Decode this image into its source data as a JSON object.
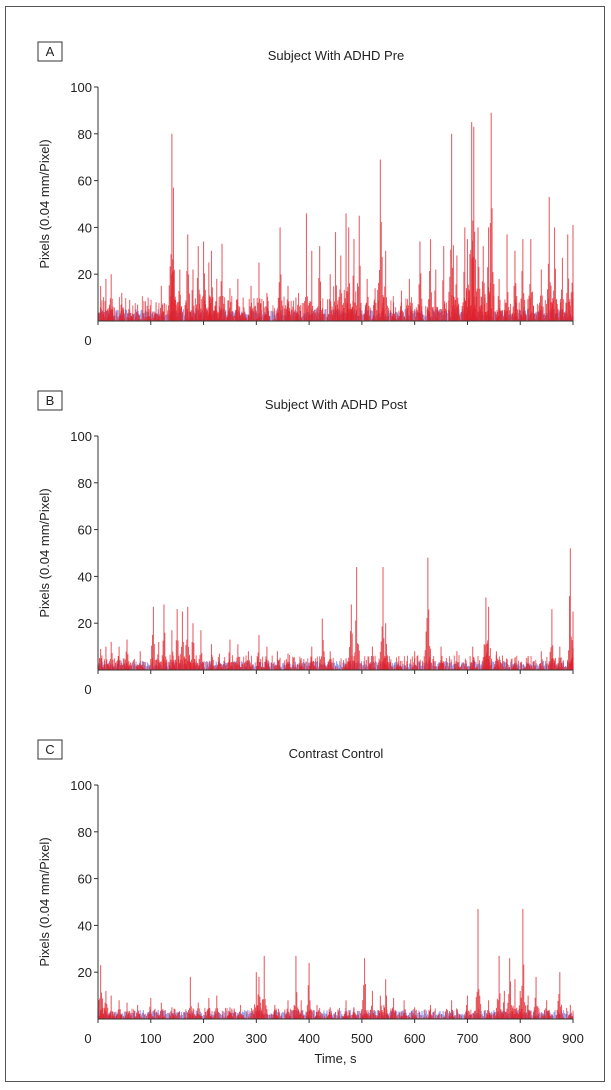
{
  "colors": {
    "subject": "#e0212b",
    "control_baseline": "#8a93e6",
    "axis": "#333333"
  },
  "shared": {
    "ylabel": "Pixels (0.04 mm/Pixel)",
    "xlabel": "Time, s",
    "x_ticks": [
      0,
      100,
      200,
      300,
      400,
      500,
      600,
      700,
      800,
      900
    ],
    "y_ticks": [
      0,
      20,
      40,
      60,
      80,
      100
    ]
  },
  "chart_data": [
    {
      "type": "area",
      "panel": "A",
      "title": "Subject With ADHD Pre",
      "xlabel": "",
      "ylabel": "Pixels (0.04 mm/Pixel)",
      "xlim": [
        0,
        900
      ],
      "ylim": [
        0,
        100
      ],
      "show_x_tick_labels": false,
      "baseline_level": 4,
      "noise_level": 7,
      "peaks": [
        [
          5,
          15
        ],
        [
          15,
          18
        ],
        [
          25,
          20
        ],
        [
          45,
          12
        ],
        [
          60,
          9
        ],
        [
          75,
          7
        ],
        [
          95,
          10
        ],
        [
          110,
          8
        ],
        [
          120,
          15
        ],
        [
          140,
          80
        ],
        [
          143,
          57
        ],
        [
          155,
          22
        ],
        [
          170,
          37
        ],
        [
          180,
          22
        ],
        [
          190,
          32
        ],
        [
          200,
          34
        ],
        [
          210,
          25
        ],
        [
          215,
          30
        ],
        [
          225,
          18
        ],
        [
          235,
          33
        ],
        [
          250,
          14
        ],
        [
          265,
          18
        ],
        [
          275,
          10
        ],
        [
          290,
          15
        ],
        [
          305,
          25
        ],
        [
          320,
          12
        ],
        [
          345,
          40
        ],
        [
          360,
          15
        ],
        [
          375,
          10
        ],
        [
          380,
          12
        ],
        [
          395,
          46
        ],
        [
          405,
          30
        ],
        [
          420,
          32
        ],
        [
          440,
          20
        ],
        [
          450,
          38
        ],
        [
          460,
          28
        ],
        [
          470,
          46
        ],
        [
          475,
          40
        ],
        [
          485,
          35
        ],
        [
          495,
          45
        ],
        [
          510,
          18
        ],
        [
          525,
          14
        ],
        [
          535,
          69
        ],
        [
          545,
          30
        ],
        [
          560,
          8
        ],
        [
          575,
          13
        ],
        [
          590,
          18
        ],
        [
          610,
          34
        ],
        [
          630,
          35
        ],
        [
          640,
          22
        ],
        [
          655,
          32
        ],
        [
          670,
          80
        ],
        [
          680,
          28
        ],
        [
          695,
          40
        ],
        [
          700,
          35
        ],
        [
          708,
          85
        ],
        [
          712,
          83
        ],
        [
          720,
          40
        ],
        [
          730,
          32
        ],
        [
          740,
          40
        ],
        [
          745,
          89
        ],
        [
          760,
          18
        ],
        [
          775,
          37
        ],
        [
          790,
          30
        ],
        [
          805,
          35
        ],
        [
          820,
          35
        ],
        [
          840,
          22
        ],
        [
          855,
          53
        ],
        [
          865,
          40
        ],
        [
          880,
          27
        ],
        [
          890,
          37
        ],
        [
          900,
          41
        ]
      ]
    },
    {
      "type": "area",
      "panel": "B",
      "title": "Subject With ADHD Post",
      "xlabel": "",
      "ylabel": "Pixels (0.04 mm/Pixel)",
      "xlim": [
        0,
        900
      ],
      "ylim": [
        0,
        100
      ],
      "show_x_tick_labels": false,
      "baseline_level": 3,
      "noise_level": 4,
      "peaks": [
        [
          5,
          9
        ],
        [
          15,
          10
        ],
        [
          25,
          12
        ],
        [
          40,
          10
        ],
        [
          55,
          13
        ],
        [
          80,
          8
        ],
        [
          105,
          27
        ],
        [
          115,
          12
        ],
        [
          125,
          28
        ],
        [
          140,
          17
        ],
        [
          150,
          26
        ],
        [
          160,
          25
        ],
        [
          170,
          27
        ],
        [
          180,
          20
        ],
        [
          195,
          17
        ],
        [
          215,
          11
        ],
        [
          230,
          7
        ],
        [
          250,
          13
        ],
        [
          265,
          11
        ],
        [
          285,
          8
        ],
        [
          305,
          15
        ],
        [
          320,
          10
        ],
        [
          340,
          8
        ],
        [
          360,
          7
        ],
        [
          385,
          5
        ],
        [
          405,
          10
        ],
        [
          425,
          22
        ],
        [
          440,
          8
        ],
        [
          470,
          5
        ],
        [
          480,
          28
        ],
        [
          490,
          44
        ],
        [
          520,
          10
        ],
        [
          540,
          44
        ],
        [
          545,
          20
        ],
        [
          570,
          6
        ],
        [
          600,
          8
        ],
        [
          625,
          48
        ],
        [
          650,
          10
        ],
        [
          680,
          8
        ],
        [
          710,
          10
        ],
        [
          735,
          31
        ],
        [
          740,
          27
        ],
        [
          755,
          8
        ],
        [
          790,
          5
        ],
        [
          815,
          6
        ],
        [
          840,
          8
        ],
        [
          860,
          26
        ],
        [
          875,
          10
        ],
        [
          895,
          52
        ],
        [
          900,
          25
        ]
      ]
    },
    {
      "type": "area",
      "panel": "C",
      "title": "Contrast Control",
      "xlabel": "Time, s",
      "ylabel": "Pixels (0.04 mm/Pixel)",
      "xlim": [
        0,
        900
      ],
      "ylim": [
        0,
        100
      ],
      "show_x_tick_labels": true,
      "baseline_level": 3,
      "noise_level": 3,
      "peaks": [
        [
          5,
          23
        ],
        [
          15,
          12
        ],
        [
          25,
          10
        ],
        [
          40,
          8
        ],
        [
          55,
          7
        ],
        [
          75,
          6
        ],
        [
          100,
          9
        ],
        [
          120,
          7
        ],
        [
          140,
          5
        ],
        [
          175,
          18
        ],
        [
          190,
          7
        ],
        [
          210,
          9
        ],
        [
          225,
          10
        ],
        [
          250,
          5
        ],
        [
          270,
          6
        ],
        [
          300,
          20
        ],
        [
          305,
          18
        ],
        [
          315,
          27
        ],
        [
          335,
          6
        ],
        [
          360,
          8
        ],
        [
          375,
          27
        ],
        [
          385,
          8
        ],
        [
          400,
          24
        ],
        [
          415,
          6
        ],
        [
          440,
          5
        ],
        [
          470,
          8
        ],
        [
          485,
          5
        ],
        [
          505,
          26
        ],
        [
          520,
          12
        ],
        [
          535,
          10
        ],
        [
          545,
          17
        ],
        [
          560,
          9
        ],
        [
          580,
          8
        ],
        [
          600,
          5
        ],
        [
          630,
          6
        ],
        [
          670,
          8
        ],
        [
          700,
          10
        ],
        [
          720,
          47
        ],
        [
          740,
          8
        ],
        [
          760,
          27
        ],
        [
          770,
          12
        ],
        [
          780,
          26
        ],
        [
          790,
          17
        ],
        [
          800,
          12
        ],
        [
          805,
          47
        ],
        [
          815,
          10
        ],
        [
          830,
          18
        ],
        [
          850,
          8
        ],
        [
          875,
          20
        ],
        [
          895,
          6
        ]
      ]
    }
  ]
}
